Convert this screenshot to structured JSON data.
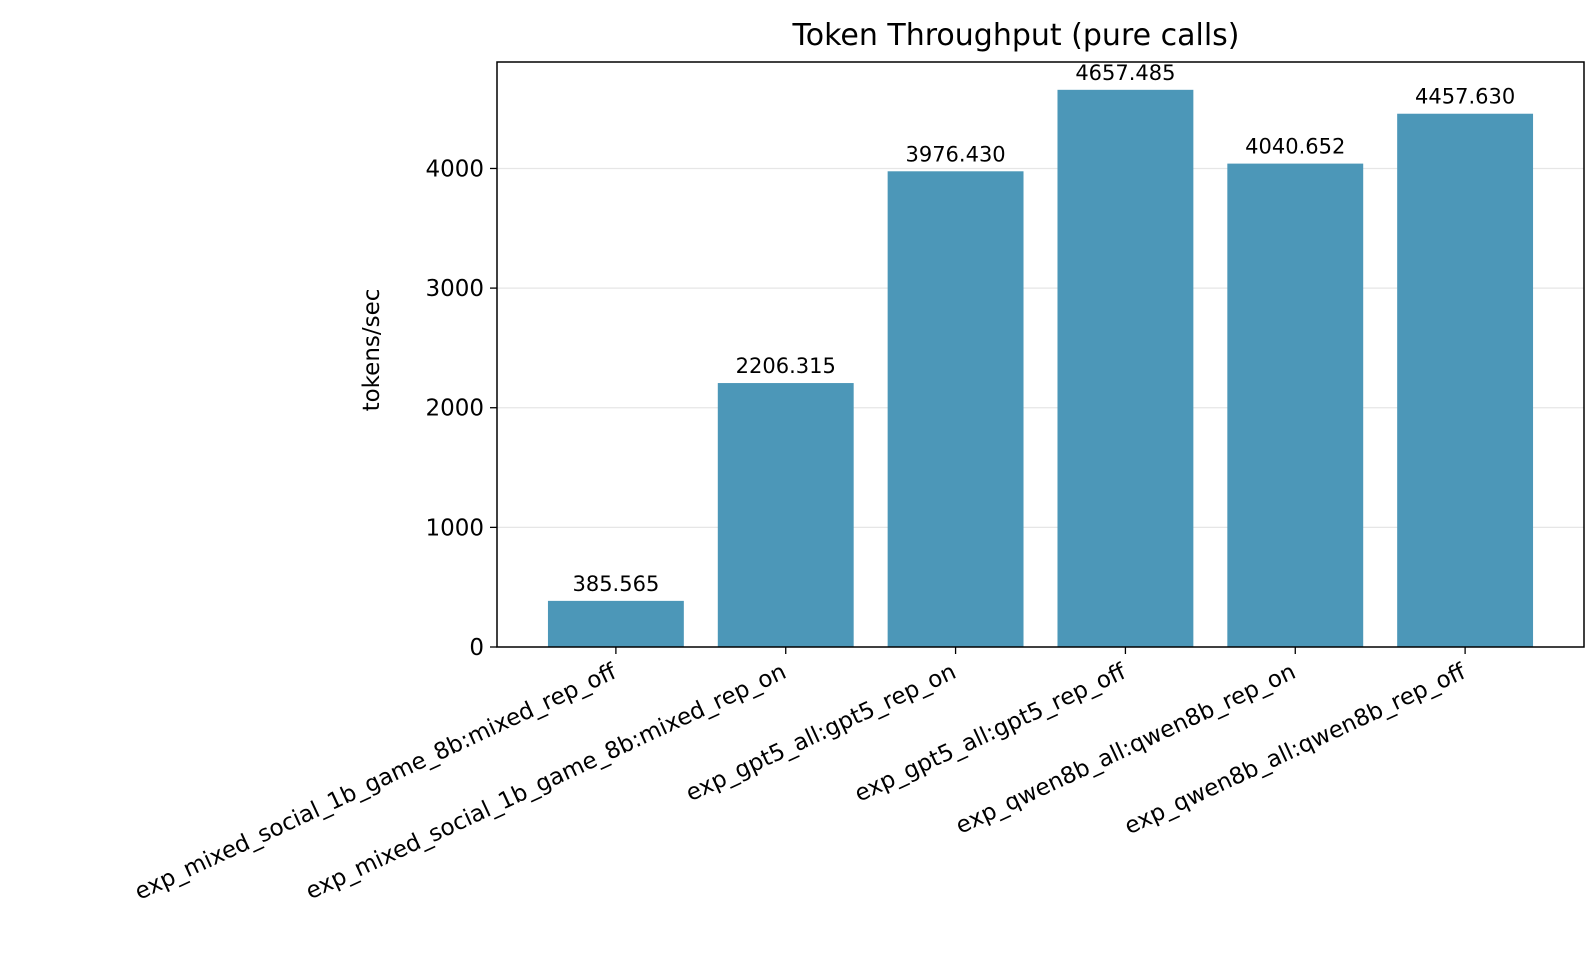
{
  "chart_data": {
    "type": "bar",
    "title": "Token Throughput (pure calls)",
    "xlabel": "",
    "ylabel": "tokens/sec",
    "categories": [
      "exp_mixed_social_1b_game_8b:mixed_rep_off",
      "exp_mixed_social_1b_game_8b:mixed_rep_on",
      "exp_gpt5_all:gpt5_rep_on",
      "exp_gpt5_all:gpt5_rep_off",
      "exp_qwen8b_all:qwen8b_rep_on",
      "exp_qwen8b_all:qwen8b_rep_off"
    ],
    "values": [
      385.565,
      2206.315,
      3976.43,
      4657.485,
      4040.652,
      4457.63
    ],
    "value_labels": [
      "385.565",
      "2206.315",
      "3976.430",
      "4657.485",
      "4040.652",
      "4457.630"
    ],
    "ylim": [
      0,
      4890
    ],
    "yticks": [
      0,
      1000,
      2000,
      3000,
      4000
    ],
    "ytick_labels": [
      "0",
      "1000",
      "2000",
      "3000",
      "4000"
    ],
    "grid": "y",
    "bar_color": "#4c97b8",
    "grid_color": "#e6e6e6"
  }
}
